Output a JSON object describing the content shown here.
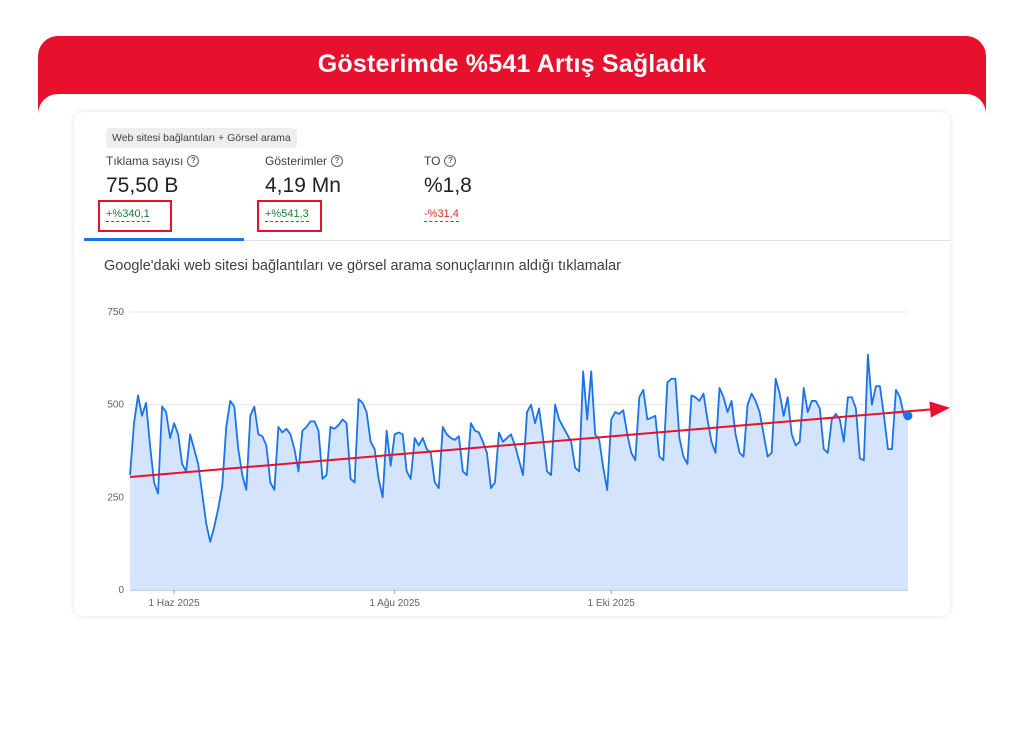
{
  "banner": {
    "title": "Gösterimde %541 Artış Sağladık"
  },
  "colors": {
    "banner_red": "#e8112d",
    "series_blue": "#1a73e8",
    "area_fill": "#d2e3fc",
    "trend_red": "#e8112d",
    "up_green": "#188038",
    "down_red": "#d93025"
  },
  "filter": {
    "label": "Web sitesi bağlantıları + Görsel arama"
  },
  "metrics": [
    {
      "label": "Tıklama sayısı",
      "value": "75,50 B",
      "delta": "+%340,1",
      "direction": "up",
      "highlighted": true
    },
    {
      "label": "Gösterimler",
      "value": "4,19 Mn",
      "delta": "+%541,3",
      "direction": "up",
      "highlighted": true
    },
    {
      "label": "TO",
      "value": "%1,8",
      "delta": "-%31,4",
      "direction": "down",
      "highlighted": false
    }
  ],
  "help_icon": "question-circle-icon",
  "chart_data": {
    "type": "area",
    "title": "Google'daki web sitesi bağlantıları ve görsel arama sonuçlarının aldığı tıklamalar",
    "xlabel": "",
    "ylabel": "",
    "ylim": [
      0,
      750
    ],
    "yticks": [
      "0",
      "250",
      "500",
      "750"
    ],
    "xticks": [
      {
        "label": "1 Haz 2025",
        "index": 11
      },
      {
        "label": "1 Ağu 2025",
        "index": 66
      },
      {
        "label": "1 Eki 2025",
        "index": 120
      }
    ],
    "grid": true,
    "legend": "none",
    "series": [
      {
        "values": [
          310,
          450,
          525,
          470,
          505,
          390,
          290,
          260,
          495,
          480,
          410,
          450,
          420,
          340,
          320,
          420,
          380,
          340,
          260,
          180,
          130,
          170,
          220,
          280,
          440,
          510,
          495,
          380,
          310,
          270,
          470,
          495,
          420,
          415,
          390,
          290,
          270,
          440,
          425,
          435,
          420,
          380,
          320,
          430,
          440,
          455,
          455,
          430,
          300,
          310,
          440,
          435,
          445,
          460,
          450,
          300,
          290,
          515,
          505,
          480,
          400,
          380,
          300,
          250,
          430,
          335,
          420,
          425,
          420,
          320,
          300,
          410,
          390,
          410,
          380,
          370,
          290,
          275,
          440,
          420,
          410,
          405,
          415,
          320,
          310,
          450,
          430,
          425,
          400,
          370,
          275,
          290,
          425,
          400,
          410,
          420,
          390,
          350,
          310,
          480,
          500,
          450,
          490,
          410,
          320,
          310,
          500,
          460,
          440,
          420,
          400,
          330,
          320,
          590,
          460,
          590,
          420,
          405,
          330,
          270,
          460,
          480,
          475,
          485,
          420,
          370,
          350,
          520,
          540,
          460,
          465,
          470,
          360,
          350,
          560,
          570,
          570,
          410,
          360,
          340,
          525,
          520,
          510,
          530,
          460,
          400,
          370,
          545,
          520,
          480,
          510,
          420,
          370,
          360,
          500,
          530,
          510,
          480,
          420,
          360,
          370,
          570,
          530,
          470,
          520,
          420,
          390,
          400,
          545,
          480,
          510,
          510,
          490,
          380,
          370,
          460,
          475,
          460,
          400,
          520,
          520,
          490,
          355,
          350,
          635,
          500,
          550,
          550,
          470,
          380,
          380,
          540,
          520,
          470,
          470
        ]
      }
    ],
    "trend": {
      "start": 305,
      "end": 482
    }
  }
}
